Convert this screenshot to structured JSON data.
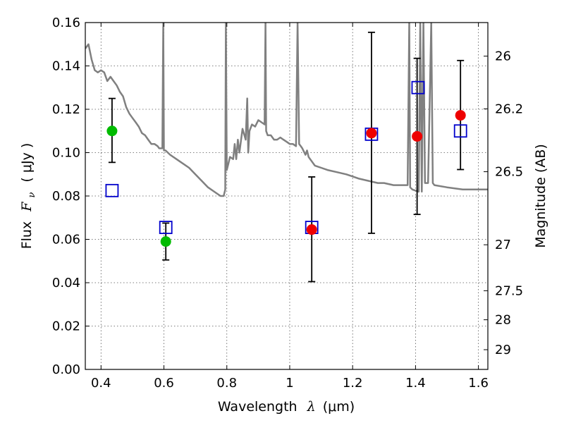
{
  "chart_data": {
    "type": "scatter",
    "title": "",
    "xlabel": {
      "text": "Wavelength",
      "math": "λ",
      "unit": "(μm)"
    },
    "ylabel": {
      "text": "Flux",
      "math": "F",
      "sub": "ν",
      "unit": "( μJy )"
    },
    "ylabel_right": "Magnitude (AB)",
    "xlim": [
      0.35,
      1.63
    ],
    "ylim": [
      0.0,
      0.16
    ],
    "grid": true,
    "x_ticks": [
      0.4,
      0.6,
      0.8,
      1.0,
      1.2,
      1.4,
      1.6
    ],
    "x_tick_labels": [
      "0.4",
      "0.6",
      "0.8",
      "1",
      "1.2",
      "1.4",
      "1.6"
    ],
    "y_ticks": [
      0.0,
      0.02,
      0.04,
      0.06,
      0.08,
      0.1,
      0.12,
      0.14,
      0.16
    ],
    "y_tick_labels": [
      "0.00",
      "0.02",
      "0.04",
      "0.06",
      "0.08",
      "0.10",
      "0.12",
      "0.14",
      "0.16"
    ],
    "mag_ticks": [
      {
        "label": "26",
        "flux": 0.1445
      },
      {
        "label": "26.2",
        "flux": 0.1202
      },
      {
        "label": "26.5",
        "flux": 0.0912
      },
      {
        "label": "27",
        "flux": 0.0575
      },
      {
        "label": "27.5",
        "flux": 0.0363
      },
      {
        "label": "28",
        "flux": 0.0229
      },
      {
        "label": "29",
        "flux": 0.0091
      }
    ],
    "series": [
      {
        "marker": "circle",
        "color": "#00bb00",
        "points": [
          {
            "x": 0.435,
            "y": 0.11,
            "yerr_low": 0.0955,
            "yerr_high": 0.125
          },
          {
            "x": 0.606,
            "y": 0.059,
            "yerr_low": 0.0505,
            "yerr_high": 0.0675
          }
        ]
      },
      {
        "marker": "circle",
        "color": "#ee0000",
        "points": [
          {
            "x": 1.07,
            "y": 0.0645,
            "yerr_low": 0.0405,
            "yerr_high": 0.0888
          },
          {
            "x": 1.26,
            "y": 0.109,
            "yerr_low": 0.0628,
            "yerr_high": 0.1555
          },
          {
            "x": 1.405,
            "y": 0.1075,
            "yerr_low": 0.0715,
            "yerr_high": 0.1435
          },
          {
            "x": 1.543,
            "y": 0.1172,
            "yerr_low": 0.0922,
            "yerr_high": 0.1425
          }
        ]
      },
      {
        "marker": "square-open",
        "color": "#0000cc",
        "points": [
          {
            "x": 0.435,
            "y": 0.0825
          },
          {
            "x": 0.606,
            "y": 0.0655
          },
          {
            "x": 1.07,
            "y": 0.0655
          },
          {
            "x": 1.26,
            "y": 0.1085
          },
          {
            "x": 1.408,
            "y": 0.13
          },
          {
            "x": 1.543,
            "y": 0.11
          }
        ]
      },
      {
        "marker": "line",
        "color": "#808080",
        "x": [
          0.35,
          0.36,
          0.37,
          0.38,
          0.39,
          0.4,
          0.41,
          0.42,
          0.43,
          0.44,
          0.45,
          0.46,
          0.47,
          0.48,
          0.49,
          0.5,
          0.51,
          0.52,
          0.53,
          0.54,
          0.55,
          0.56,
          0.57,
          0.58,
          0.585,
          0.595,
          0.598,
          0.6,
          0.605,
          0.62,
          0.65,
          0.68,
          0.7,
          0.72,
          0.74,
          0.76,
          0.78,
          0.79,
          0.795,
          0.797,
          0.8,
          0.805,
          0.81,
          0.82,
          0.825,
          0.83,
          0.835,
          0.84,
          0.85,
          0.86,
          0.865,
          0.868,
          0.872,
          0.88,
          0.89,
          0.9,
          0.91,
          0.92,
          0.923,
          0.925,
          0.93,
          0.94,
          0.95,
          0.96,
          0.97,
          0.98,
          0.99,
          1.0,
          1.01,
          1.02,
          1.025,
          1.03,
          1.035,
          1.04,
          1.05,
          1.055,
          1.06,
          1.07,
          1.08,
          1.1,
          1.12,
          1.15,
          1.18,
          1.2,
          1.22,
          1.25,
          1.28,
          1.3,
          1.33,
          1.36,
          1.375,
          1.38,
          1.383,
          1.39,
          1.41,
          1.415,
          1.42,
          1.425,
          1.43,
          1.44,
          1.45,
          1.455,
          1.46,
          1.5,
          1.55,
          1.6,
          1.63
        ],
        "y": [
          0.148,
          0.15,
          0.143,
          0.138,
          0.137,
          0.138,
          0.137,
          0.133,
          0.135,
          0.133,
          0.131,
          0.128,
          0.126,
          0.121,
          0.118,
          0.116,
          0.114,
          0.112,
          0.109,
          0.108,
          0.106,
          0.104,
          0.104,
          0.103,
          0.102,
          0.102,
          0.16,
          0.101,
          0.101,
          0.099,
          0.096,
          0.093,
          0.09,
          0.087,
          0.084,
          0.082,
          0.08,
          0.08,
          0.083,
          0.16,
          0.092,
          0.095,
          0.098,
          0.097,
          0.104,
          0.097,
          0.106,
          0.1,
          0.111,
          0.106,
          0.125,
          0.1,
          0.11,
          0.113,
          0.112,
          0.115,
          0.114,
          0.113,
          0.16,
          0.11,
          0.108,
          0.108,
          0.106,
          0.106,
          0.107,
          0.106,
          0.105,
          0.104,
          0.104,
          0.103,
          0.16,
          0.104,
          0.103,
          0.102,
          0.099,
          0.101,
          0.098,
          0.096,
          0.094,
          0.093,
          0.092,
          0.091,
          0.09,
          0.089,
          0.088,
          0.087,
          0.086,
          0.086,
          0.085,
          0.085,
          0.085,
          0.16,
          0.084,
          0.083,
          0.082,
          0.16,
          0.082,
          0.16,
          0.086,
          0.086,
          0.16,
          0.086,
          0.085,
          0.084,
          0.083,
          0.083,
          0.083
        ]
      }
    ]
  }
}
